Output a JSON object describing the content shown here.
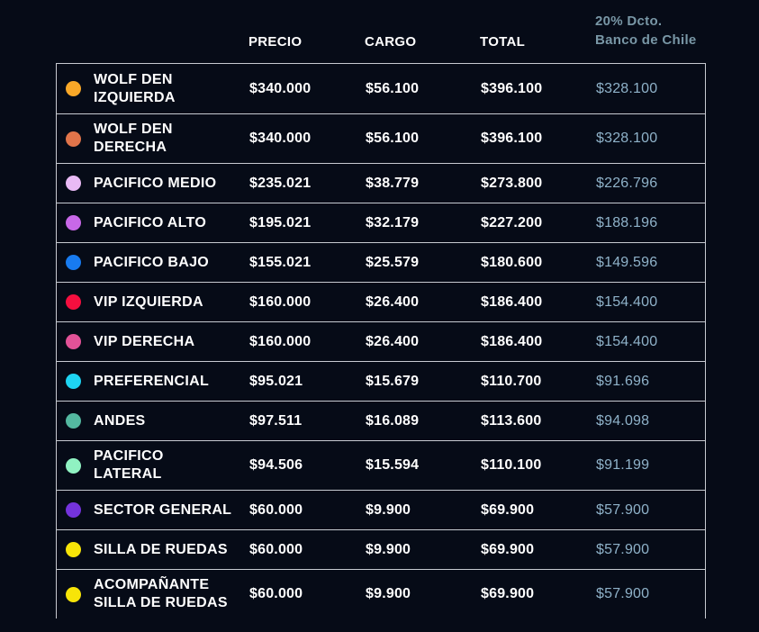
{
  "page": {
    "background": "#060B17",
    "border_color": "#C7CAD1",
    "dcto_header_color": "#7997A6",
    "dcto_value_color": "#8FB2C9"
  },
  "header": {
    "precio": "PRECIO",
    "cargo": "CARGO",
    "total": "TOTAL",
    "dcto_line1": "20% Dcto.",
    "dcto_line2": "Banco de Chile"
  },
  "rows": [
    {
      "name1": "WOLF DEN",
      "name2": "IZQUIERDA",
      "dot_color": "#F9A828",
      "precio": "$340.000",
      "cargo": "$56.100",
      "total": "$396.100",
      "dcto": "$328.100"
    },
    {
      "name1": "WOLF DEN",
      "name2": "DERECHA",
      "dot_color": "#E0744A",
      "precio": "$340.000",
      "cargo": "$56.100",
      "total": "$396.100",
      "dcto": "$328.100"
    },
    {
      "name1": "PACIFICO MEDIO",
      "dot_color": "#E9BAF5",
      "precio": "$235.021",
      "cargo": "$38.779",
      "total": "$273.800",
      "dcto": "$226.796"
    },
    {
      "name1": "PACIFICO ALTO",
      "dot_color": "#C868E8",
      "precio": "$195.021",
      "cargo": "$32.179",
      "total": "$227.200",
      "dcto": "$188.196"
    },
    {
      "name1": "PACIFICO BAJO",
      "dot_color": "#187BF0",
      "precio": "$155.021",
      "cargo": "$25.579",
      "total": "$180.600",
      "dcto": "$149.596"
    },
    {
      "name1": "VIP IZQUIERDA",
      "dot_color": "#F50F3F",
      "precio": "$160.000",
      "cargo": "$26.400",
      "total": "$186.400",
      "dcto": "$154.400"
    },
    {
      "name1": "VIP DERECHA",
      "dot_color": "#E25297",
      "precio": "$160.000",
      "cargo": "$26.400",
      "total": "$186.400",
      "dcto": "$154.400"
    },
    {
      "name1": "PREFERENCIAL",
      "dot_color": "#1ED4F2",
      "precio": "$95.021",
      "cargo": "$15.679",
      "total": "$110.700",
      "dcto": "$91.696"
    },
    {
      "name1": "ANDES",
      "dot_color": "#54B8A0",
      "precio": "$97.511",
      "cargo": "$16.089",
      "total": "$113.600",
      "dcto": "$94.098"
    },
    {
      "name1": "PACIFICO",
      "name2": "LATERAL",
      "dot_color": "#90F2C2",
      "precio": "$94.506",
      "cargo": "$15.594",
      "total": "$110.100",
      "dcto": "$91.199"
    },
    {
      "name1": "SECTOR GENERAL",
      "dot_color": "#7433DC",
      "precio": "$60.000",
      "cargo": "$9.900",
      "total": "$69.900",
      "dcto": "$57.900"
    },
    {
      "name1": "SILLA DE RUEDAS",
      "dot_color": "#F7E408",
      "precio": "$60.000",
      "cargo": "$9.900",
      "total": "$69.900",
      "dcto": "$57.900"
    },
    {
      "name1": "ACOMPAÑANTE",
      "name2": "SILLA DE RUEDAS",
      "dot_color": "#F7E408",
      "precio": "$60.000",
      "cargo": "$9.900",
      "total": "$69.900",
      "dcto": "$57.900"
    }
  ]
}
